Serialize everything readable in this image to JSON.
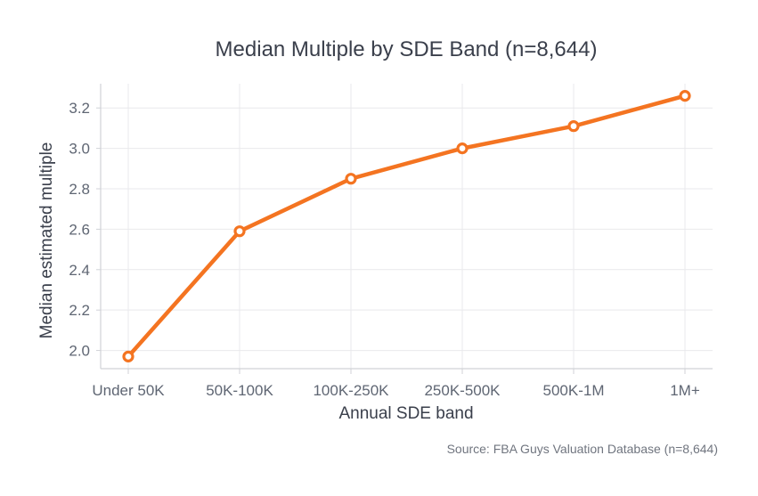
{
  "chart_data": {
    "type": "line",
    "title": "Median Multiple by SDE Band (n=8,644)",
    "xlabel": "Annual SDE band",
    "ylabel": "Median estimated multiple",
    "categories": [
      "Under 50K",
      "50K-100K",
      "100K-250K",
      "250K-500K",
      "500K-1M",
      "1M+"
    ],
    "series": [
      {
        "values": [
          1.97,
          2.59,
          2.85,
          3.0,
          3.11,
          3.26
        ]
      }
    ],
    "ylim": [
      1.91,
      3.32
    ],
    "yticks": [
      "2.0",
      "2.2",
      "2.4",
      "2.6",
      "2.8",
      "3.0",
      "3.2"
    ],
    "grid": true,
    "line_color": "#f47421",
    "marker": "hollow-circle",
    "source_note": "Source: FBA Guys Valuation Database (n=8,644)"
  }
}
